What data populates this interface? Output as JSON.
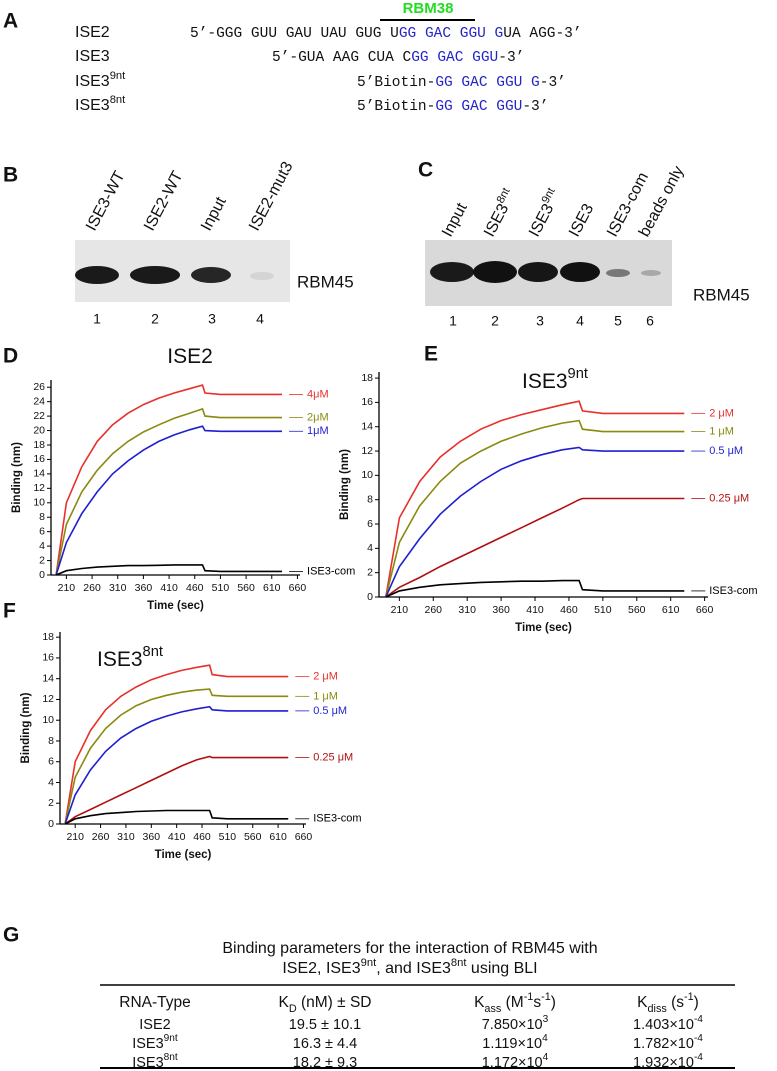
{
  "panel_labels": [
    "A",
    "B",
    "C",
    "D",
    "E",
    "F",
    "G"
  ],
  "annotation": "RBM38",
  "sequences": [
    {
      "label": [
        {
          "text": "ISE2"
        }
      ],
      "seq": [
        {
          "text": "5’-GGG GUU GAU UAU GUG U"
        },
        {
          "text": "GG GAC GGU G",
          "color": "#2424c8"
        },
        {
          "text": "UA AGG-3’"
        }
      ]
    },
    {
      "label": [
        {
          "text": "ISE3"
        }
      ],
      "seq": [
        {
          "text": "5’-GUA AAG CUA C"
        },
        {
          "text": "GG GAC GGU",
          "color": "#2424c8"
        },
        {
          "text": "-3’"
        }
      ]
    },
    {
      "label": [
        {
          "text": "ISE3"
        },
        {
          "text": "9nt",
          "sup": true
        }
      ],
      "seq": [
        {
          "text": "5’Biotin-"
        },
        {
          "text": "GG GAC GGU G",
          "color": "#2424c8"
        },
        {
          "text": "-3’"
        }
      ]
    },
    {
      "label": [
        {
          "text": "ISE3"
        },
        {
          "text": "8nt",
          "sup": true
        }
      ],
      "seq": [
        {
          "text": "5’Biotin-"
        },
        {
          "text": "GG GAC GGU",
          "color": "#2424c8"
        },
        {
          "text": "-3’"
        }
      ]
    }
  ],
  "blots": [
    {
      "lanes": [
        [
          {
            "text": "ISE3-WT"
          }
        ],
        [
          {
            "text": "ISE2-WT"
          }
        ],
        [
          {
            "text": "Input"
          }
        ],
        [
          {
            "text": "ISE2-mut3"
          }
        ]
      ],
      "lane_numbers": [
        1,
        2,
        3,
        4
      ],
      "protein": "RBM45"
    },
    {
      "lanes": [
        [
          {
            "text": "Input"
          }
        ],
        [
          {
            "text": "ISE3"
          },
          {
            "text": "8nt",
            "sup": true
          }
        ],
        [
          {
            "text": "ISE3"
          },
          {
            "text": "9nt",
            "sup": true
          }
        ],
        [
          {
            "text": "ISE3"
          }
        ],
        [
          {
            "text": "ISE3-com"
          }
        ],
        [
          {
            "text": "beads only"
          }
        ]
      ],
      "lane_numbers": [
        1,
        2,
        3,
        4,
        5,
        6
      ],
      "protein": "RBM45"
    }
  ],
  "chart_data": [
    {
      "type": "line",
      "title": [
        {
          "text": "ISE2"
        }
      ],
      "x_label": "Time (sec)",
      "y_label": "Binding (nm)",
      "x": [
        190,
        210,
        240,
        270,
        300,
        330,
        360,
        390,
        420,
        450,
        475,
        480,
        510,
        540,
        570,
        600,
        630
      ],
      "xlim": [
        180,
        665
      ],
      "xticks": [
        210,
        260,
        310,
        360,
        410,
        460,
        510,
        560,
        610,
        660
      ],
      "ylim": [
        0,
        27
      ],
      "yticks": [
        0,
        2,
        4,
        6,
        8,
        10,
        12,
        14,
        16,
        18,
        20,
        22,
        24,
        26
      ],
      "series": [
        {
          "name": "4μM",
          "color": "#e8302a",
          "values": [
            0,
            10,
            15,
            18.5,
            20.8,
            22.4,
            23.6,
            24.5,
            25.2,
            25.8,
            26.3,
            25.2,
            25,
            25,
            25,
            25,
            25
          ]
        },
        {
          "name": "2μM",
          "color": "#8a8a10",
          "values": [
            0,
            7,
            11.5,
            14.5,
            16.8,
            18.5,
            19.8,
            20.8,
            21.7,
            22.4,
            23,
            22,
            21.8,
            21.8,
            21.8,
            21.8,
            21.8
          ]
        },
        {
          "name": "1μM",
          "color": "#1f1fd0",
          "values": [
            0,
            4.5,
            8.5,
            11.5,
            14,
            15.8,
            17.3,
            18.5,
            19.4,
            20.1,
            20.6,
            20,
            19.9,
            19.9,
            19.9,
            19.9,
            19.9
          ]
        },
        {
          "name": "ISE3-com",
          "color": "#000000",
          "values": [
            0,
            0.6,
            0.9,
            1.1,
            1.2,
            1.3,
            1.3,
            1.35,
            1.4,
            1.4,
            1.4,
            0.6,
            0.5,
            0.5,
            0.5,
            0.5,
            0.5
          ]
        }
      ]
    },
    {
      "type": "line",
      "title": [
        {
          "text": "ISE3"
        },
        {
          "text": "9nt",
          "sup": true
        }
      ],
      "x_label": "Time (sec)",
      "y_label": "Binding (nm)",
      "x": [
        190,
        210,
        240,
        270,
        300,
        330,
        360,
        390,
        420,
        450,
        475,
        480,
        510,
        540,
        570,
        600,
        630
      ],
      "xlim": [
        180,
        665
      ],
      "xticks": [
        210,
        260,
        310,
        360,
        410,
        460,
        510,
        560,
        610,
        660
      ],
      "ylim": [
        0,
        18.5
      ],
      "yticks": [
        0,
        2,
        4,
        6,
        8,
        10,
        12,
        14,
        16,
        18
      ],
      "series": [
        {
          "name": "2 μM",
          "color": "#e8302a",
          "values": [
            0,
            6.5,
            9.5,
            11.5,
            12.8,
            13.8,
            14.5,
            15,
            15.4,
            15.8,
            16.1,
            15.3,
            15.1,
            15.1,
            15.1,
            15.1,
            15.1
          ]
        },
        {
          "name": "1 μM",
          "color": "#8a8a10",
          "values": [
            0,
            4.5,
            7.5,
            9.5,
            11,
            12,
            12.8,
            13.4,
            13.9,
            14.3,
            14.5,
            13.8,
            13.6,
            13.6,
            13.6,
            13.6,
            13.6
          ]
        },
        {
          "name": "0.5 μM",
          "color": "#1f1fd0",
          "values": [
            0,
            2.5,
            4.8,
            6.8,
            8.3,
            9.5,
            10.5,
            11.2,
            11.7,
            12.1,
            12.3,
            12.1,
            12,
            12,
            12,
            12,
            12
          ]
        },
        {
          "name": "0.25 μM",
          "color": "#b01010",
          "values": [
            0,
            0.8,
            1.6,
            2.5,
            3.3,
            4.1,
            4.9,
            5.7,
            6.5,
            7.3,
            8,
            8.1,
            8.1,
            8.1,
            8.1,
            8.1,
            8.1
          ]
        },
        {
          "name": "ISE3-com",
          "color": "#000000",
          "values": [
            0,
            0.5,
            0.8,
            1,
            1.1,
            1.2,
            1.25,
            1.3,
            1.3,
            1.35,
            1.35,
            0.6,
            0.5,
            0.5,
            0.5,
            0.5,
            0.5
          ]
        }
      ]
    },
    {
      "type": "line",
      "title": [
        {
          "text": "ISE3"
        },
        {
          "text": "8nt",
          "sup": true
        }
      ],
      "x_label": "Time (sec)",
      "y_label": "Binding (nm)",
      "x": [
        190,
        210,
        240,
        270,
        300,
        330,
        360,
        390,
        420,
        450,
        475,
        480,
        510,
        540,
        570,
        600,
        630
      ],
      "xlim": [
        180,
        665
      ],
      "xticks": [
        210,
        260,
        310,
        360,
        410,
        460,
        510,
        560,
        610,
        660
      ],
      "ylim": [
        0,
        18.5
      ],
      "yticks": [
        0,
        2,
        4,
        6,
        8,
        10,
        12,
        14,
        16,
        18
      ],
      "series": [
        {
          "name": "2 μM",
          "color": "#e8302a",
          "values": [
            0,
            6,
            9,
            11,
            12.3,
            13.2,
            13.9,
            14.4,
            14.8,
            15.1,
            15.3,
            14.4,
            14.2,
            14.2,
            14.2,
            14.2,
            14.2
          ]
        },
        {
          "name": "1 μM",
          "color": "#8a8a10",
          "values": [
            0,
            4.5,
            7.3,
            9.2,
            10.5,
            11.4,
            12,
            12.4,
            12.7,
            12.9,
            13,
            12.4,
            12.3,
            12.3,
            12.3,
            12.3,
            12.3
          ]
        },
        {
          "name": "0.5 μM",
          "color": "#1f1fd0",
          "values": [
            0,
            2.8,
            5.2,
            7,
            8.3,
            9.2,
            9.9,
            10.4,
            10.8,
            11.1,
            11.3,
            11,
            10.9,
            10.9,
            10.9,
            10.9,
            10.9
          ]
        },
        {
          "name": "0.25 μM",
          "color": "#b01010",
          "values": [
            0,
            0.7,
            1.4,
            2.1,
            2.8,
            3.5,
            4.2,
            4.9,
            5.6,
            6.2,
            6.5,
            6.4,
            6.4,
            6.4,
            6.4,
            6.4,
            6.4
          ]
        },
        {
          "name": "ISE3-com",
          "color": "#000000",
          "values": [
            0,
            0.5,
            0.8,
            1,
            1.1,
            1.2,
            1.25,
            1.3,
            1.3,
            1.3,
            1.3,
            0.6,
            0.5,
            0.5,
            0.5,
            0.5,
            0.5
          ]
        }
      ]
    }
  ],
  "table": {
    "title": [
      [
        {
          "text": "Binding parameters for the interaction of RBM45 with"
        }
      ],
      [
        {
          "text": "ISE2, ISE3"
        },
        {
          "text": "9nt",
          "sup": true
        },
        {
          "text": ", and ISE3"
        },
        {
          "text": "8nt",
          "sup": true
        },
        {
          "text": " using BLI"
        }
      ]
    ],
    "header": [
      [
        {
          "text": "RNA-Type"
        }
      ],
      [
        {
          "text": "K"
        },
        {
          "text": "D",
          "sub": true
        },
        {
          "text": " (nM) ± SD"
        }
      ],
      [
        {
          "text": "K"
        },
        {
          "text": "ass",
          "sub": true
        },
        {
          "text": " (M"
        },
        {
          "text": "-1",
          "sup": true
        },
        {
          "text": "s"
        },
        {
          "text": "-1",
          "sup": true
        },
        {
          "text": ")"
        }
      ],
      [
        {
          "text": "K"
        },
        {
          "text": "diss",
          "sub": true
        },
        {
          "text": " (s"
        },
        {
          "text": "-1",
          "sup": true
        },
        {
          "text": ")"
        }
      ]
    ],
    "rows": [
      [
        [
          {
            "text": "ISE2"
          }
        ],
        [
          {
            "text": "19.5 ± 10.1"
          }
        ],
        [
          {
            "text": "7.850×10"
          },
          {
            "text": "3",
            "sup": true
          }
        ],
        [
          {
            "text": "1.403×10"
          },
          {
            "text": "-4",
            "sup": true
          }
        ]
      ],
      [
        [
          {
            "text": "ISE3"
          },
          {
            "text": "9nt",
            "sup": true
          }
        ],
        [
          {
            "text": "16.3 ± 4.4"
          }
        ],
        [
          {
            "text": "1.119×10"
          },
          {
            "text": "4",
            "sup": true
          }
        ],
        [
          {
            "text": "1.782×10"
          },
          {
            "text": "-4",
            "sup": true
          }
        ]
      ],
      [
        [
          {
            "text": "ISE3"
          },
          {
            "text": "8nt",
            "sup": true
          }
        ],
        [
          {
            "text": "18.2 ± 9.3"
          }
        ],
        [
          {
            "text": "1.172×10"
          },
          {
            "text": "4",
            "sup": true
          }
        ],
        [
          {
            "text": "1.932×10"
          },
          {
            "text": "-4",
            "sup": true
          }
        ]
      ]
    ]
  }
}
